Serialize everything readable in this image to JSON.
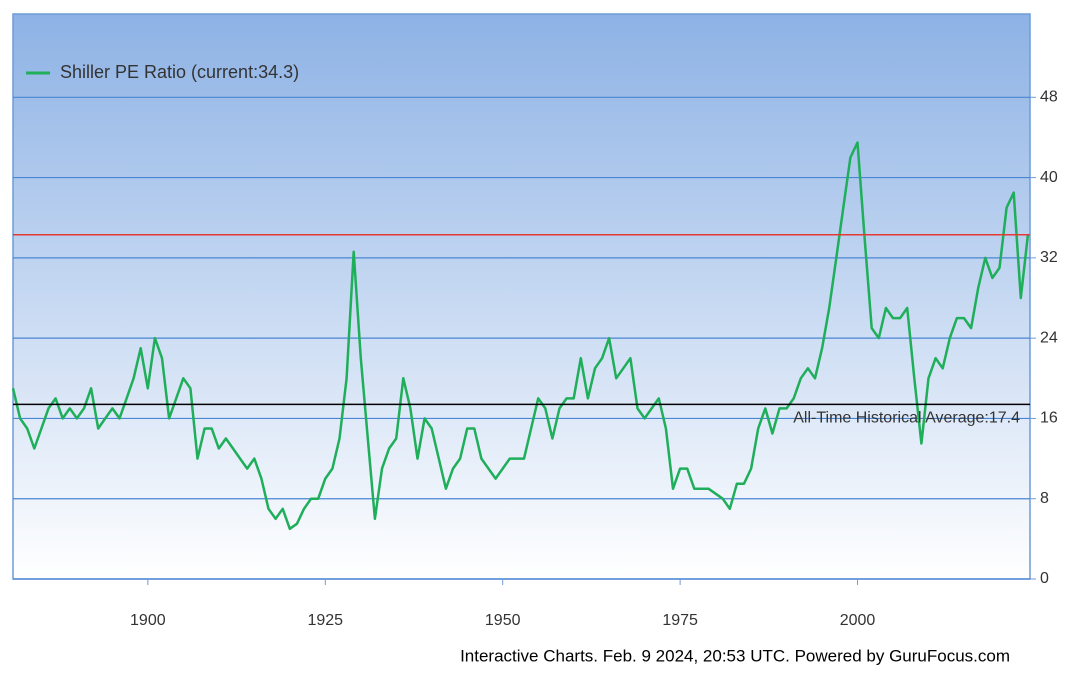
{
  "chart_data": {
    "type": "line",
    "x": [
      1881,
      1882,
      1883,
      1884,
      1885,
      1886,
      1887,
      1888,
      1889,
      1890,
      1891,
      1892,
      1893,
      1894,
      1895,
      1896,
      1897,
      1898,
      1899,
      1900,
      1901,
      1902,
      1903,
      1904,
      1905,
      1906,
      1907,
      1908,
      1909,
      1910,
      1911,
      1912,
      1913,
      1914,
      1915,
      1916,
      1917,
      1918,
      1919,
      1920,
      1921,
      1922,
      1923,
      1924,
      1925,
      1926,
      1927,
      1928,
      1929,
      1930,
      1931,
      1932,
      1933,
      1934,
      1935,
      1936,
      1937,
      1938,
      1939,
      1940,
      1941,
      1942,
      1943,
      1944,
      1945,
      1946,
      1947,
      1948,
      1949,
      1950,
      1951,
      1952,
      1953,
      1954,
      1955,
      1956,
      1957,
      1958,
      1959,
      1960,
      1961,
      1962,
      1963,
      1964,
      1965,
      1966,
      1967,
      1968,
      1969,
      1970,
      1971,
      1972,
      1973,
      1974,
      1975,
      1976,
      1977,
      1978,
      1979,
      1980,
      1981,
      1982,
      1983,
      1984,
      1985,
      1986,
      1987,
      1988,
      1989,
      1990,
      1991,
      1992,
      1993,
      1994,
      1995,
      1996,
      1997,
      1998,
      1999,
      2000,
      2001,
      2002,
      2003,
      2004,
      2005,
      2006,
      2007,
      2008,
      2009,
      2010,
      2011,
      2012,
      2013,
      2014,
      2015,
      2016,
      2017,
      2018,
      2019,
      2020,
      2021,
      2022,
      2023,
      2024
    ],
    "series": [
      {
        "name": "Shiller PE Ratio (current:34.3)",
        "color": "#1fae5a",
        "values": [
          19,
          16,
          15,
          13,
          15,
          17,
          18,
          16,
          17,
          16,
          17,
          19,
          15,
          16,
          17,
          16,
          18,
          20,
          23,
          19,
          24,
          22,
          16,
          18,
          20,
          19,
          12,
          15,
          15,
          13,
          14,
          13,
          12,
          11,
          12,
          10,
          7,
          6,
          7,
          5,
          5.5,
          7,
          8,
          8,
          10,
          11,
          14,
          20,
          32.6,
          22,
          14,
          6,
          11,
          13,
          14,
          20,
          17,
          12,
          16,
          15,
          12,
          9,
          11,
          12,
          15,
          15,
          12,
          11,
          10,
          11,
          12,
          12,
          12,
          15,
          18,
          17,
          14,
          17,
          18,
          18,
          22,
          18,
          21,
          22,
          24,
          20,
          21,
          22,
          17,
          16,
          17,
          18,
          15,
          9,
          11,
          11,
          9,
          9,
          9,
          8.5,
          8,
          7,
          9.5,
          9.5,
          11,
          15,
          17,
          14.5,
          17,
          17,
          18,
          20,
          21,
          20,
          23,
          27,
          32,
          37,
          42,
          43.5,
          34,
          25,
          24,
          27,
          26,
          26,
          27,
          20,
          13.5,
          20,
          22,
          21,
          24,
          26,
          26,
          25,
          29,
          32,
          30,
          31,
          37,
          38.5,
          28,
          34.3
        ]
      }
    ],
    "reference_lines": [
      {
        "value": 34.3,
        "color": "#e53935"
      },
      {
        "value": 17.4,
        "color": "#000000",
        "label": "All-Time Historical Average:17.4"
      }
    ],
    "xlim": [
      1881,
      2024.3
    ],
    "xticks": [
      1900,
      1925,
      1950,
      1975,
      2000
    ],
    "ylim": [
      0,
      56.3
    ],
    "yticks": [
      0,
      8,
      16,
      24,
      32,
      40,
      48
    ],
    "grid": true,
    "legend": "top-left",
    "footer": "Interactive Charts. Feb. 9 2024, 20:53 UTC. Powered by GuruFocus.com"
  }
}
